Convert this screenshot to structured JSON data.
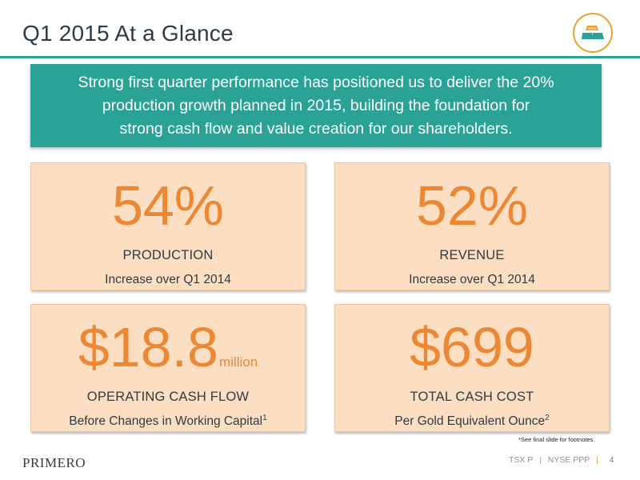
{
  "header": {
    "title": "Q1 2015 At a Glance",
    "logo_icon": "gold-bars-icon",
    "accent_color": "#2aa296",
    "logo_ring_color": "#e8a22b"
  },
  "banner": {
    "text": "Strong first quarter performance has positioned us to deliver the 20%\nproduction growth planned in 2015, building the foundation for\nstrong cash flow and value creation for our shareholders."
  },
  "cards": [
    {
      "value": "54%",
      "unit": "",
      "label": "PRODUCTION",
      "sub": "Increase over Q1 2014",
      "footnote_mark": ""
    },
    {
      "value": "52%",
      "unit": "",
      "label": "REVENUE",
      "sub": "Increase over Q1 2014",
      "footnote_mark": ""
    },
    {
      "value": "$18.8",
      "unit": "million",
      "label": "OPERATING CASH FLOW",
      "sub": "Before Changes in Working Capital",
      "footnote_mark": "1"
    },
    {
      "value": "$699",
      "unit": "",
      "label": "TOTAL CASH COST",
      "sub": "Per Gold Equivalent Ounce",
      "footnote_mark": "2"
    }
  ],
  "colors": {
    "card_bg": "#fcdfc3",
    "value": "#ec8733"
  },
  "footnote": "*See final slide for footnotes.",
  "footer": {
    "logo_text": "PRIMERO",
    "tsx_label": "TSX",
    "tsx_symbol": "P",
    "nyse_label": "NYSE",
    "nyse_symbol": "PPP",
    "separator": "|",
    "page_number": "4"
  }
}
